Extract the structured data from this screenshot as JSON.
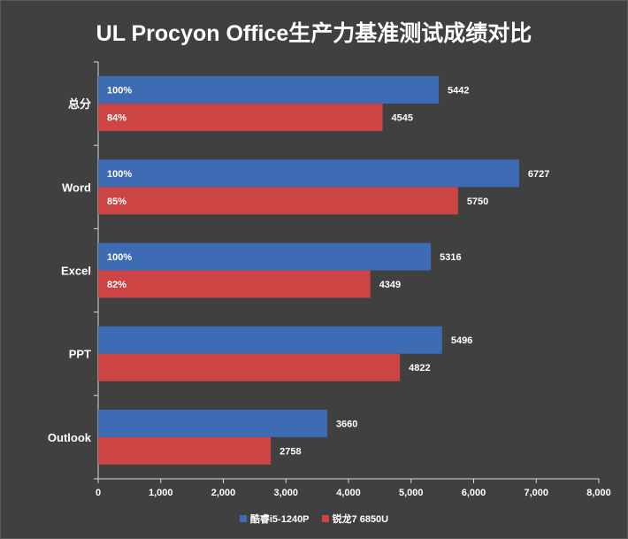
{
  "title": "UL Procyon Office生产力基准测试成绩对比",
  "colors": {
    "background": "#404040",
    "series1": "#3d6cb5",
    "series2": "#cc4444",
    "text": "#ffffff",
    "axis": "#d9d9d9"
  },
  "chart_data": {
    "type": "bar",
    "orientation": "horizontal",
    "title": "UL Procyon Office生产力基准测试成绩对比",
    "categories": [
      "总分",
      "Word",
      "Excel",
      "PPT",
      "Outlook"
    ],
    "series": [
      {
        "name": "酷睿i5-1240P",
        "values": [
          5442,
          6727,
          5316,
          5496,
          3660
        ],
        "inner_labels": [
          "100%",
          "100%",
          "100%",
          "",
          ""
        ]
      },
      {
        "name": "锐龙7 6850U",
        "values": [
          4545,
          5750,
          4349,
          4822,
          2758
        ],
        "inner_labels": [
          "84%",
          "85%",
          "82%",
          "",
          ""
        ]
      }
    ],
    "xlim": [
      0,
      8000
    ],
    "xticks": [
      "0",
      "1,000",
      "2,000",
      "3,000",
      "4,000",
      "5,000",
      "6,000",
      "7,000",
      "8,000"
    ],
    "grid": false,
    "legend_position": "bottom"
  }
}
